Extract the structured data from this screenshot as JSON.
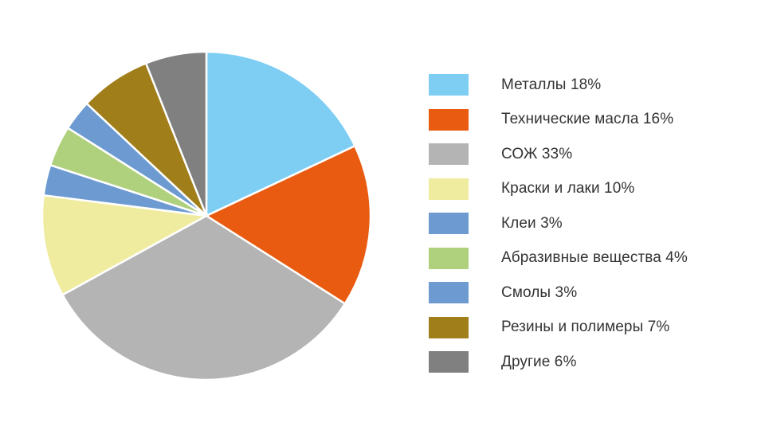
{
  "chart_data": {
    "type": "pie",
    "title": "",
    "slices": [
      {
        "label": "Металлы 18%",
        "value": 18,
        "color": "#7ECEF4"
      },
      {
        "label": "Технические масла 16%",
        "value": 16,
        "color": "#E95B10"
      },
      {
        "label": "СОЖ 33%",
        "value": 33,
        "color": "#B4B4B4"
      },
      {
        "label": "Краски и лаки 10%",
        "value": 10,
        "color": "#F0EC9F"
      },
      {
        "label": "Клеи 3%",
        "value": 3,
        "color": "#6D9BD1"
      },
      {
        "label": "Абразивные вещества 4%",
        "value": 4,
        "color": "#AFD07D"
      },
      {
        "label": "Смолы 3%",
        "value": 3,
        "color": "#6D9BD1"
      },
      {
        "label": "Резины и полимеры 7%",
        "value": 7,
        "color": "#A07E1A"
      },
      {
        "label": "Другие 6%",
        "value": 6,
        "color": "#808080"
      }
    ],
    "start": "12 o'clock",
    "direction": "clockwise",
    "legend_position": "right"
  }
}
